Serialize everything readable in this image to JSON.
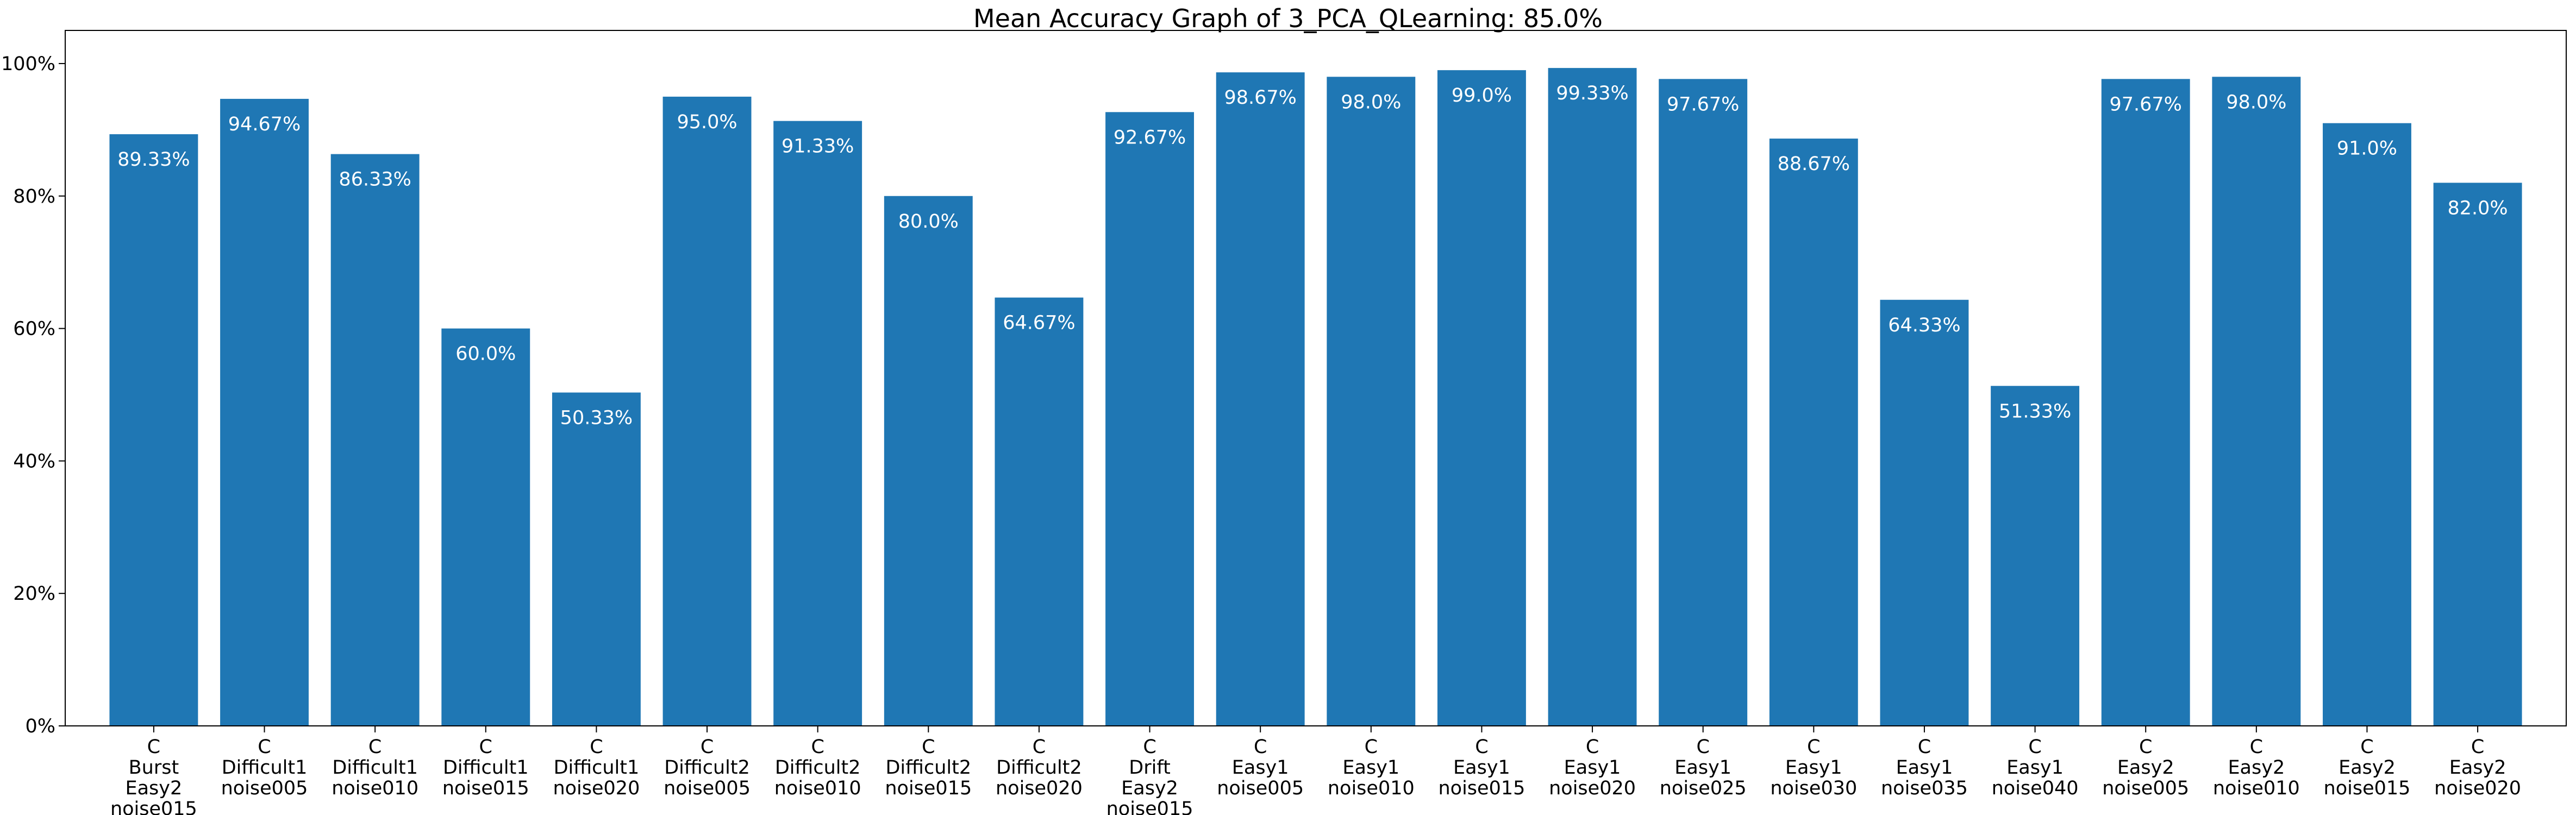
{
  "chart_data": {
    "type": "bar",
    "title": "Mean Accuracy Graph of 3_PCA_QLearning: 85.0%",
    "xlabel": "",
    "ylabel": "",
    "ylim": [
      0,
      1.05
    ],
    "y_ticks": [
      {
        "value": 0.0,
        "label": "0%"
      },
      {
        "value": 0.2,
        "label": "20%"
      },
      {
        "value": 0.4,
        "label": "40%"
      },
      {
        "value": 0.6,
        "label": "60%"
      },
      {
        "value": 0.8,
        "label": "80%"
      },
      {
        "value": 1.0,
        "label": "100%"
      }
    ],
    "bar_color": "#1f77b4",
    "label_color": "#ffffff",
    "grid": false,
    "categories": [
      [
        "C",
        "Burst",
        "Easy2",
        "noise015"
      ],
      [
        "C",
        "Difficult1",
        "noise005"
      ],
      [
        "C",
        "Difficult1",
        "noise010"
      ],
      [
        "C",
        "Difficult1",
        "noise015"
      ],
      [
        "C",
        "Difficult1",
        "noise020"
      ],
      [
        "C",
        "Difficult2",
        "noise005"
      ],
      [
        "C",
        "Difficult2",
        "noise010"
      ],
      [
        "C",
        "Difficult2",
        "noise015"
      ],
      [
        "C",
        "Difficult2",
        "noise020"
      ],
      [
        "C",
        "Drift",
        "Easy2",
        "noise015"
      ],
      [
        "C",
        "Easy1",
        "noise005"
      ],
      [
        "C",
        "Easy1",
        "noise010"
      ],
      [
        "C",
        "Easy1",
        "noise015"
      ],
      [
        "C",
        "Easy1",
        "noise020"
      ],
      [
        "C",
        "Easy1",
        "noise025"
      ],
      [
        "C",
        "Easy1",
        "noise030"
      ],
      [
        "C",
        "Easy1",
        "noise035"
      ],
      [
        "C",
        "Easy1",
        "noise040"
      ],
      [
        "C",
        "Easy2",
        "noise005"
      ],
      [
        "C",
        "Easy2",
        "noise010"
      ],
      [
        "C",
        "Easy2",
        "noise015"
      ],
      [
        "C",
        "Easy2",
        "noise020"
      ]
    ],
    "values": [
      0.8933,
      0.9467,
      0.8633,
      0.6,
      0.5033,
      0.95,
      0.9133,
      0.8,
      0.6467,
      0.9267,
      0.9867,
      0.98,
      0.99,
      0.9933,
      0.9767,
      0.8867,
      0.6433,
      0.5133,
      0.9767,
      0.98,
      0.91,
      0.82
    ],
    "data_labels": [
      "89.33%",
      "94.67%",
      "86.33%",
      "60.0%",
      "50.33%",
      "95.0%",
      "91.33%",
      "80.0%",
      "64.67%",
      "92.67%",
      "98.67%",
      "98.0%",
      "99.0%",
      "99.33%",
      "97.67%",
      "88.67%",
      "64.33%",
      "51.33%",
      "97.67%",
      "98.0%",
      "91.0%",
      "82.0%"
    ]
  }
}
